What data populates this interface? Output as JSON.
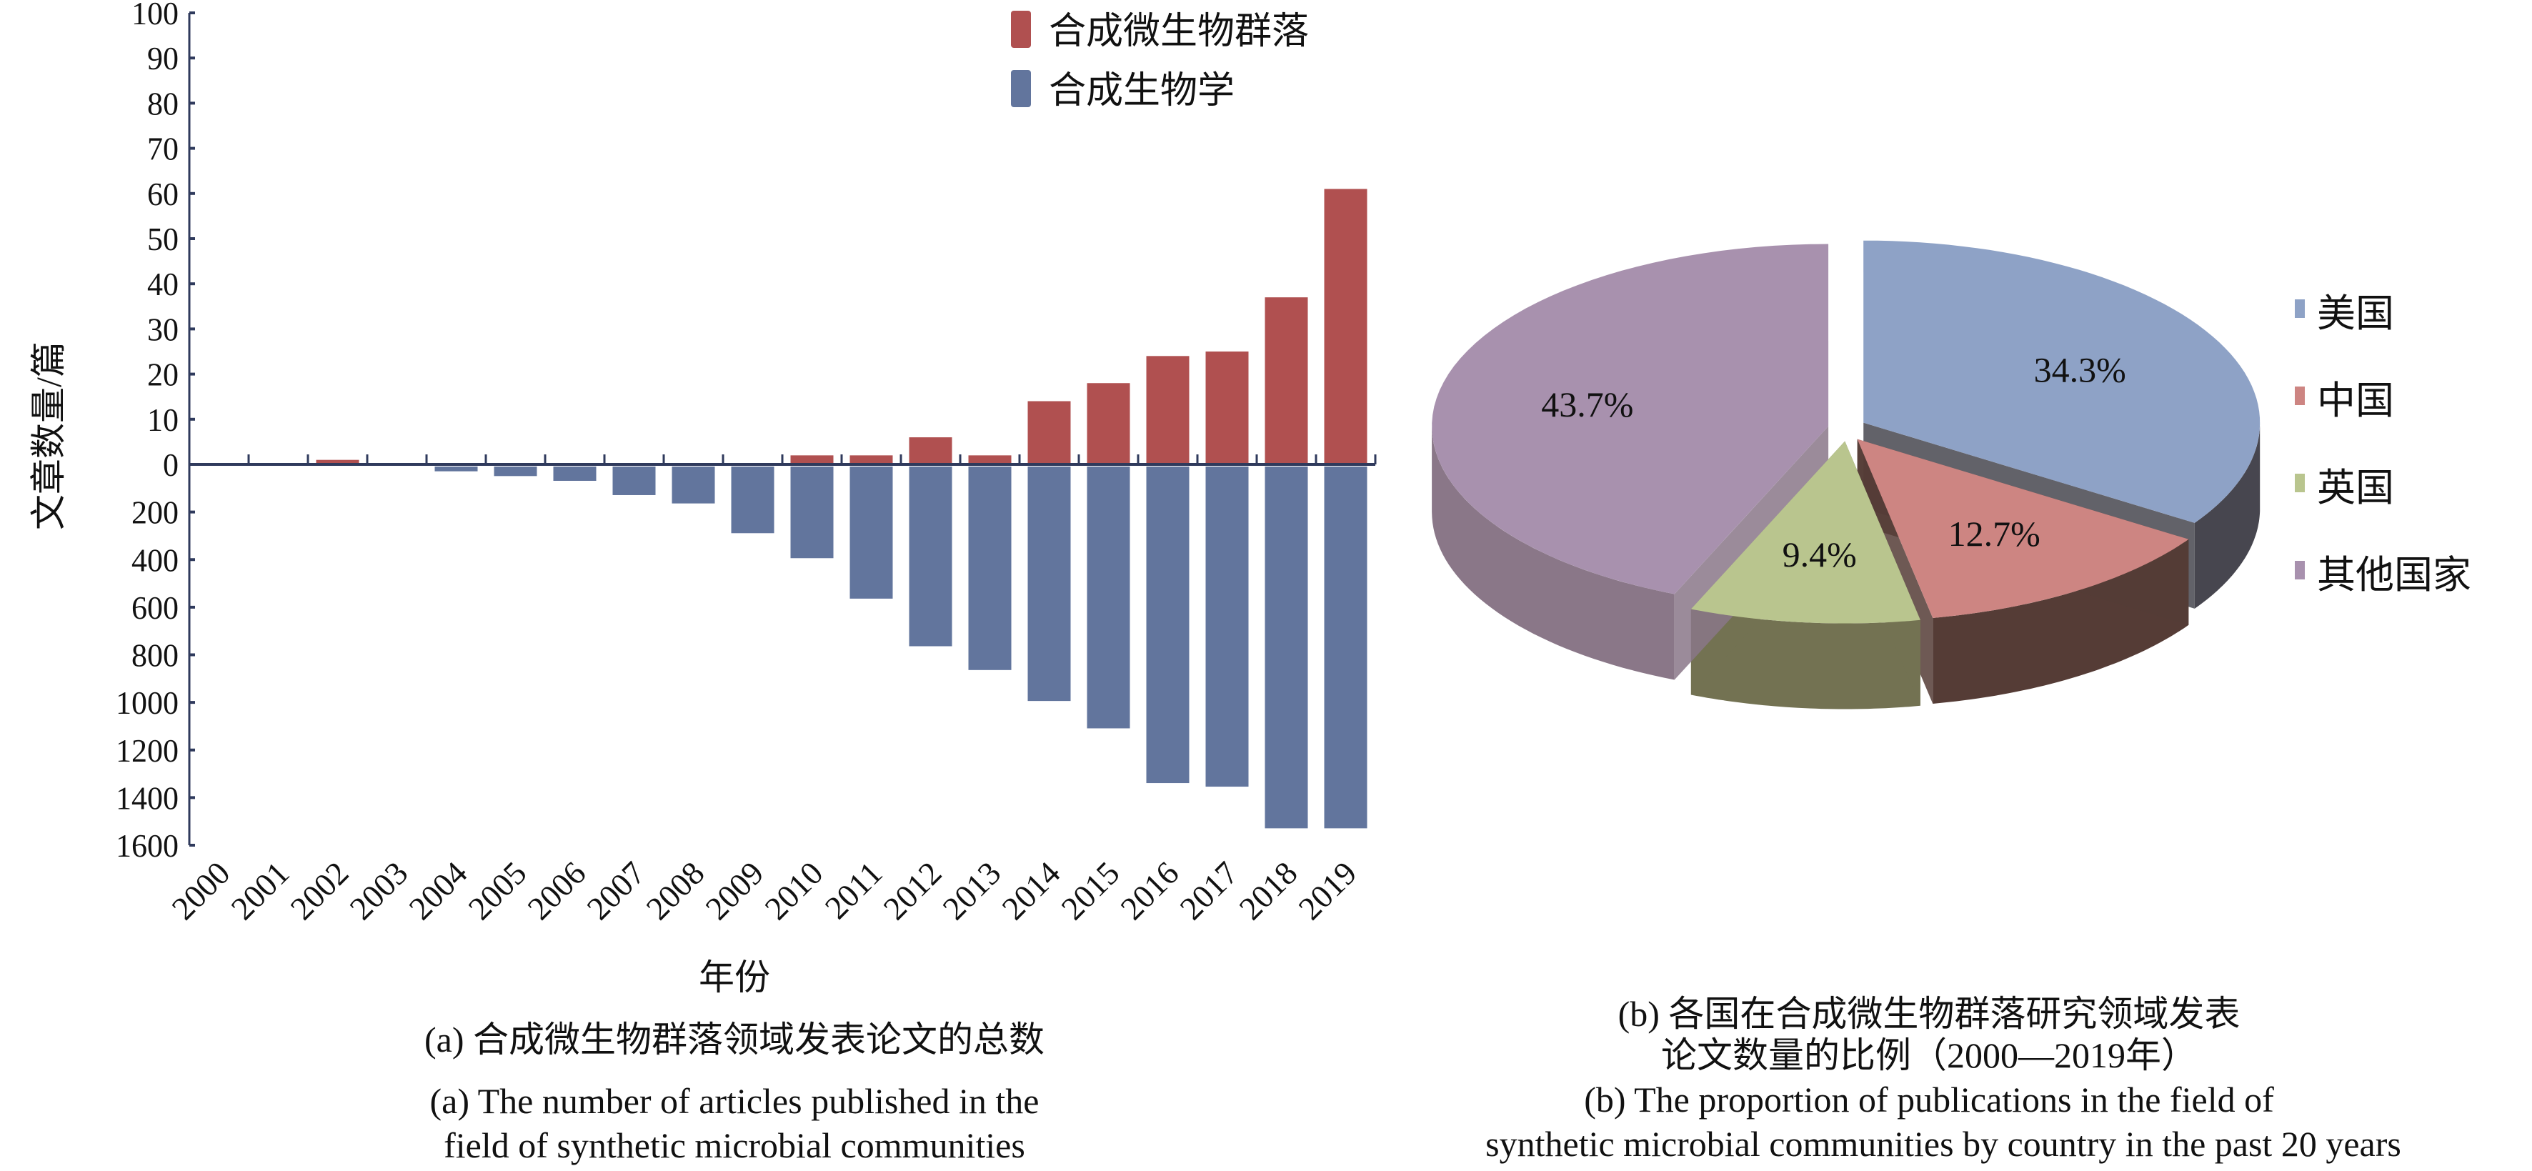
{
  "chart_data": [
    {
      "type": "bar",
      "title": "(a) 合成微生物群落领域发表论文的总数",
      "subtitle": "(a) The number of articles published in the field of synthetic microbial communities",
      "xlabel": "年份",
      "ylabel": "文章数量/篇",
      "categories": [
        "2000",
        "2001",
        "2002",
        "2003",
        "2004",
        "2005",
        "2006",
        "2007",
        "2008",
        "2009",
        "2010",
        "2011",
        "2012",
        "2013",
        "2014",
        "2015",
        "2016",
        "2017",
        "2018",
        "2019"
      ],
      "series": [
        {
          "name": "合成微生物群落",
          "color": "#b05050",
          "direction": "up",
          "values": [
            0,
            0,
            1,
            0,
            0,
            0,
            0,
            0,
            0,
            0,
            2,
            2,
            6,
            2,
            14,
            18,
            24,
            25,
            37,
            61
          ]
        },
        {
          "name": "合成生物学",
          "color": "#62759d",
          "direction": "down",
          "values": [
            0,
            0,
            0,
            0,
            20,
            40,
            60,
            120,
            155,
            280,
            385,
            555,
            755,
            855,
            985,
            1100,
            1330,
            1345,
            1520,
            1520
          ]
        }
      ],
      "yticks_up": [
        "100",
        "90",
        "80",
        "70",
        "60",
        "50",
        "40",
        "30",
        "20",
        "10",
        "0"
      ],
      "yticks_down": [
        "200",
        "400",
        "600",
        "800",
        "1000",
        "1200",
        "1400",
        "1600"
      ],
      "ylim_up": [
        0,
        100
      ],
      "ylim_down": [
        0,
        1600
      ],
      "legend": "top-right"
    },
    {
      "type": "pie",
      "title": "(b) 各国在合成微生物群落研究领域发表",
      "title_line2": "论文数量的比例（2000—2019年）",
      "subtitle": "(b) The proportion of publications in the field of",
      "subtitle_line2": "synthetic microbial communities by country in the past 20 years",
      "slices": [
        {
          "label": "美国",
          "value": 34.3,
          "text": "34.3%",
          "color": "#8ea2c6",
          "side": "#47464f"
        },
        {
          "label": "中国",
          "value": 12.7,
          "text": "12.7%",
          "color": "#cd8582",
          "side": "#553c36"
        },
        {
          "label": "英国",
          "value": 9.4,
          "text": "9.4%",
          "color": "#b9c58e",
          "side": "#737252"
        },
        {
          "label": "其他国家",
          "value": 43.7,
          "text": "43.7%",
          "color": "#a891ae",
          "side": "#8a7788"
        }
      ],
      "legend": "right"
    }
  ],
  "captions": {
    "a_zh": "(a) 合成微生物群落领域发表论文的总数",
    "a_en1": "(a) The number of articles published in the",
    "a_en2": "field of synthetic microbial communities",
    "b_zh1": "(b) 各国在合成微生物群落研究领域发表",
    "b_zh2": "论文数量的比例（2000—2019年）",
    "b_en1": "(b) The proportion of publications in the field of",
    "b_en2": "synthetic microbial communities by country in the past 20 years"
  }
}
